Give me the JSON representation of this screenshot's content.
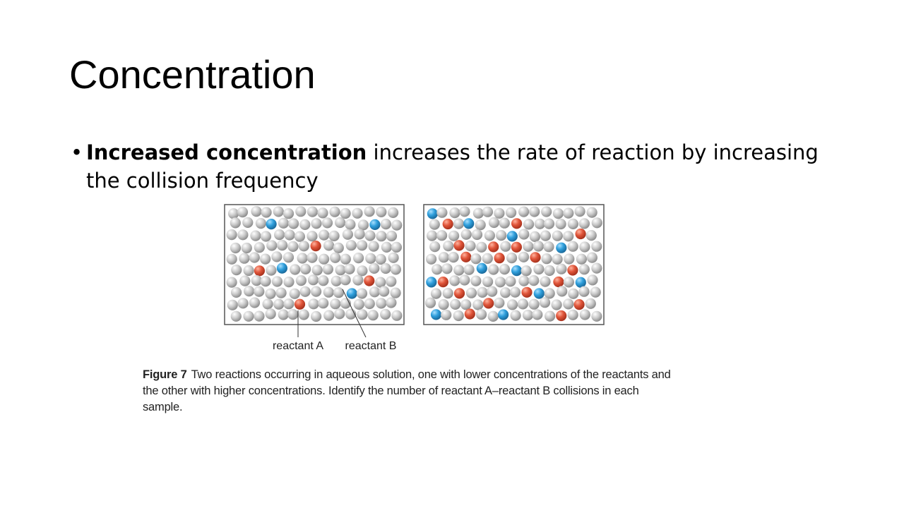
{
  "slide": {
    "title": "Concentration",
    "bullet": {
      "bold": "Increased concentration",
      "rest": " increases the rate of reaction by increasing the collision frequency"
    },
    "figure": {
      "label_a": "reactant A",
      "label_b": "reactant B",
      "caption_label": "Figure 7",
      "caption_text": "Two reactions occurring in aqueous solution, one with lower concentrations of the reactants and the other with higher concentrations. Identify the number of reactant A–reactant B collisions in each sample.",
      "colors": {
        "reactant_a": "#e0553a",
        "reactant_b": "#2f9fdc",
        "solvent": "#c8c8c8",
        "border": "#555555"
      }
    }
  }
}
